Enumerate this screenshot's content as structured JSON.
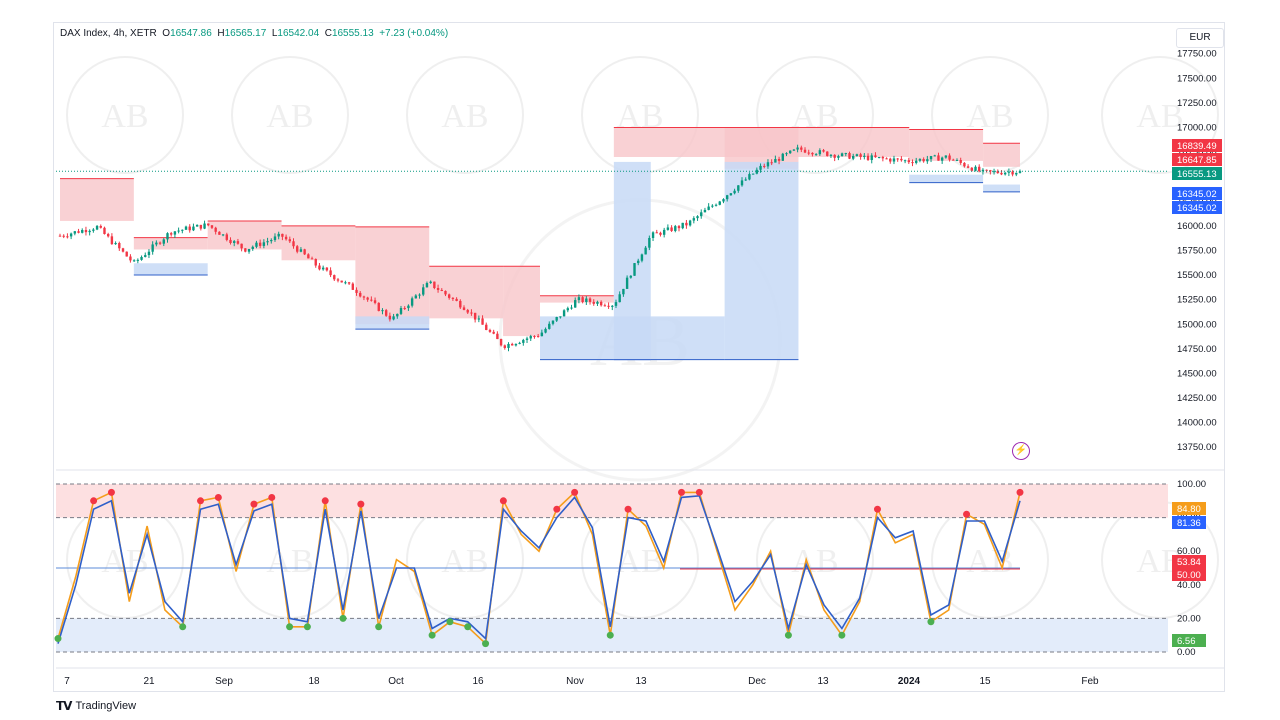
{
  "header": {
    "symbol": "DAX Index, 4h, XETR",
    "open_label": "O",
    "open": "16547.86",
    "high_label": "H",
    "high": "16565.17",
    "low_label": "L",
    "low": "16542.04",
    "close_label": "C",
    "close": "16555.13",
    "change": "+7.23 (+0.04%)"
  },
  "currency": "EUR",
  "brand": "TradingView",
  "watermark": "AB",
  "colors": {
    "up": "#089981",
    "down": "#f23645",
    "supply_zone": "#f7c6c9",
    "demand_zone": "#c7d9f6",
    "stoch_k": "#f59d1b",
    "stoch_d": "#2f5fc9",
    "overbought_band": "#fde0e1",
    "oversold_band": "#e3ecfa"
  },
  "chart_data": [
    {
      "type": "candlestick",
      "x_ticks": [
        "7",
        "21",
        "Sep",
        "18",
        "Oct",
        "16",
        "Nov",
        "13",
        "Dec",
        "13",
        "2024",
        "15",
        "Feb"
      ],
      "y_ticks": [
        "17750.00",
        "17500.00",
        "17250.00",
        "17000.00",
        "16750.00",
        "16500.00",
        "16250.00",
        "16000.00",
        "15750.00",
        "15500.00",
        "15250.00",
        "15000.00",
        "14750.00",
        "14500.00",
        "14250.00",
        "14000.00",
        "13750.00"
      ],
      "ylim": [
        13600,
        17950
      ],
      "price_path": [
        [
          "7",
          15900
        ],
        [
          "14",
          15990
        ],
        [
          "21",
          15620
        ],
        [
          "28",
          15940
        ],
        [
          "Sep",
          16010
        ],
        [
          "11",
          15760
        ],
        [
          "18",
          15900
        ],
        [
          "25",
          15580
        ],
        [
          "Oct",
          15350
        ],
        [
          "9",
          15050
        ],
        [
          "16",
          15420
        ],
        [
          "23",
          15160
        ],
        [
          "30",
          14780
        ],
        [
          "Nov",
          14900
        ],
        [
          "6",
          15250
        ],
        [
          "13",
          15200
        ],
        [
          "20",
          15900
        ],
        [
          "27",
          16020
        ],
        [
          "Dec",
          16300
        ],
        [
          "6",
          16600
        ],
        [
          "13",
          16780
        ],
        [
          "20",
          16720
        ],
        [
          "27",
          16690
        ],
        [
          "2024",
          16660
        ],
        [
          "8",
          16700
        ],
        [
          "15",
          16540
        ],
        [
          "22",
          16555
        ]
      ],
      "last_close": 16555.13,
      "price_labels": [
        {
          "value": "16839.49",
          "kind": "resistance"
        },
        {
          "value": "16647.85",
          "kind": "resistance"
        },
        {
          "value": "16555.13",
          "kind": "last"
        },
        {
          "value": "16345.02",
          "kind": "support"
        },
        {
          "value": "16345.02",
          "kind": "support"
        }
      ],
      "supply_zones": [
        {
          "from": "7",
          "to": "21",
          "low": 16050,
          "high": 16480
        },
        {
          "from": "21",
          "to": "Sep",
          "low": 15760,
          "high": 15880
        },
        {
          "from": "Sep",
          "to": "18",
          "low": 15760,
          "high": 16050
        },
        {
          "from": "18",
          "to": "Oct",
          "low": 15650,
          "high": 16000
        },
        {
          "from": "Oct",
          "to": "16",
          "low": 15000,
          "high": 15990
        },
        {
          "from": "16",
          "to": "30",
          "low": 15060,
          "high": 15590
        },
        {
          "from": "30",
          "to": "Nov",
          "low": 14880,
          "high": 15590
        },
        {
          "from": "Nov",
          "to": "13",
          "low": 15220,
          "high": 15290
        },
        {
          "from": "Dec",
          "to": "13",
          "low": 16580,
          "high": 17000
        },
        {
          "from": "13",
          "to": "2024",
          "low": 16700,
          "high": 17000
        },
        {
          "from": "2024",
          "to": "15",
          "low": 16660,
          "high": 16980
        },
        {
          "from": "15",
          "to": "22",
          "low": 16600,
          "high": 16840
        }
      ],
      "demand_zones": [
        {
          "from": "21",
          "to": "Sep",
          "low": 15500,
          "high": 15620
        },
        {
          "from": "Oct",
          "to": "16",
          "low": 14950,
          "high": 15080
        },
        {
          "from": "Nov",
          "to": "Dec",
          "low": 14640,
          "high": 15080
        },
        {
          "from": "Dec",
          "to": "13",
          "low": 14640,
          "high": 16650
        },
        {
          "from": "13",
          "to": "20",
          "low": 14640,
          "high": 16650
        },
        {
          "from": "2024",
          "to": "15",
          "low": 16440,
          "high": 16520
        },
        {
          "from": "15",
          "to": "22",
          "low": 16345,
          "high": 16420
        }
      ]
    },
    {
      "type": "line",
      "name_k": "",
      "name_d": "",
      "y_ticks": [
        "100.00",
        "80.00",
        "60.00",
        "40.00",
        "20.00",
        "0.00"
      ],
      "ylim": [
        0,
        100
      ],
      "overbought": 80,
      "oversold": 20,
      "midline": 50,
      "k": [
        8,
        45,
        90,
        95,
        30,
        75,
        25,
        15,
        90,
        92,
        48,
        88,
        92,
        15,
        15,
        90,
        20,
        88,
        15,
        55,
        48,
        10,
        18,
        15,
        5,
        90,
        70,
        60,
        85,
        95,
        70,
        10,
        85,
        75,
        50,
        95,
        95,
        60,
        25,
        40,
        60,
        10,
        55,
        25,
        10,
        30,
        85,
        65,
        70,
        18,
        25,
        82,
        76,
        50,
        95
      ],
      "d": [
        5,
        40,
        85,
        90,
        35,
        70,
        30,
        18,
        85,
        88,
        52,
        84,
        88,
        20,
        18,
        85,
        25,
        84,
        20,
        50,
        50,
        14,
        20,
        18,
        8,
        85,
        72,
        62,
        80,
        92,
        74,
        15,
        80,
        78,
        54,
        92,
        93,
        62,
        30,
        42,
        58,
        14,
        52,
        28,
        14,
        32,
        80,
        68,
        72,
        22,
        28,
        78,
        78,
        54,
        90
      ],
      "labels": [
        {
          "value": "84.80",
          "kind": "k"
        },
        {
          "value": "81.36",
          "kind": "d"
        },
        {
          "value": "53.84",
          "kind": "mid-red"
        },
        {
          "value": "50.00",
          "kind": "mid"
        },
        {
          "value": "6.56",
          "kind": "low"
        }
      ]
    }
  ]
}
